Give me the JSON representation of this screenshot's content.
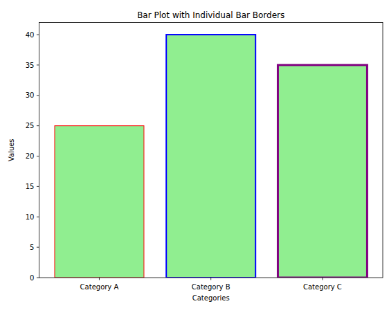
{
  "chart_data": {
    "type": "bar",
    "title": "Bar Plot with Individual Bar Borders",
    "x_label": "Categories",
    "y_label": "Values",
    "categories": [
      "Category A",
      "Category B",
      "Category C"
    ],
    "values": [
      25,
      40,
      35
    ],
    "color": "lightgreen",
    "colors": [
      "red",
      "blue",
      "purple"
    ],
    "ylim": [
      0,
      42
    ],
    "yticks": [
      0,
      5,
      10,
      15,
      20,
      25,
      30,
      35,
      40
    ],
    "grid": false
  }
}
